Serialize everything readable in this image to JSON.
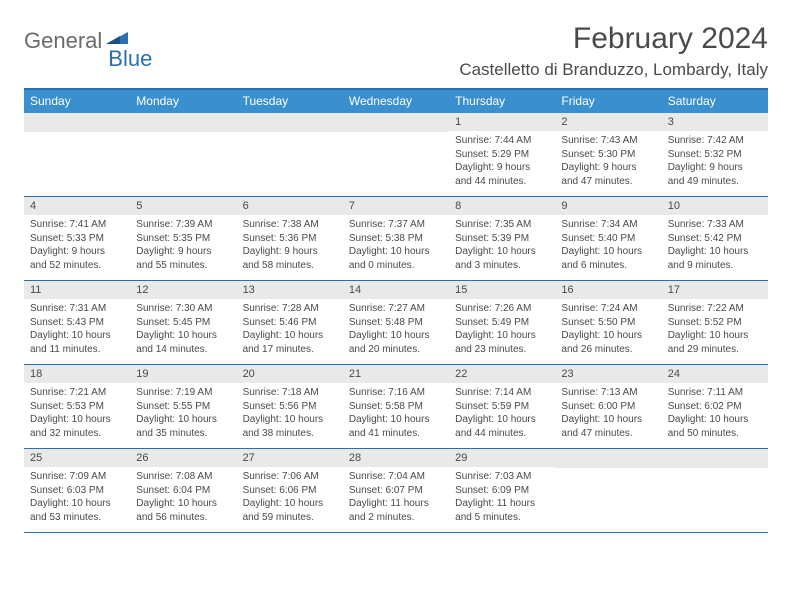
{
  "brand": {
    "part1": "General",
    "part2": "Blue"
  },
  "title": "February 2024",
  "location": "Castelletto di Branduzzo, Lombardy, Italy",
  "colors": {
    "header_bg": "#3a8fcf",
    "border": "#2b6fb3",
    "daynum_bg": "#e9e9e9",
    "text": "#4a4a4a",
    "header_text": "#ffffff",
    "brand_gray": "#6a6a6a",
    "brand_blue": "#2b6fb3"
  },
  "day_names": [
    "Sunday",
    "Monday",
    "Tuesday",
    "Wednesday",
    "Thursday",
    "Friday",
    "Saturday"
  ],
  "weeks": [
    [
      null,
      null,
      null,
      null,
      {
        "n": "1",
        "sunrise": "7:44 AM",
        "sunset": "5:29 PM",
        "daylight": "9 hours and 44 minutes."
      },
      {
        "n": "2",
        "sunrise": "7:43 AM",
        "sunset": "5:30 PM",
        "daylight": "9 hours and 47 minutes."
      },
      {
        "n": "3",
        "sunrise": "7:42 AM",
        "sunset": "5:32 PM",
        "daylight": "9 hours and 49 minutes."
      }
    ],
    [
      {
        "n": "4",
        "sunrise": "7:41 AM",
        "sunset": "5:33 PM",
        "daylight": "9 hours and 52 minutes."
      },
      {
        "n": "5",
        "sunrise": "7:39 AM",
        "sunset": "5:35 PM",
        "daylight": "9 hours and 55 minutes."
      },
      {
        "n": "6",
        "sunrise": "7:38 AM",
        "sunset": "5:36 PM",
        "daylight": "9 hours and 58 minutes."
      },
      {
        "n": "7",
        "sunrise": "7:37 AM",
        "sunset": "5:38 PM",
        "daylight": "10 hours and 0 minutes."
      },
      {
        "n": "8",
        "sunrise": "7:35 AM",
        "sunset": "5:39 PM",
        "daylight": "10 hours and 3 minutes."
      },
      {
        "n": "9",
        "sunrise": "7:34 AM",
        "sunset": "5:40 PM",
        "daylight": "10 hours and 6 minutes."
      },
      {
        "n": "10",
        "sunrise": "7:33 AM",
        "sunset": "5:42 PM",
        "daylight": "10 hours and 9 minutes."
      }
    ],
    [
      {
        "n": "11",
        "sunrise": "7:31 AM",
        "sunset": "5:43 PM",
        "daylight": "10 hours and 11 minutes."
      },
      {
        "n": "12",
        "sunrise": "7:30 AM",
        "sunset": "5:45 PM",
        "daylight": "10 hours and 14 minutes."
      },
      {
        "n": "13",
        "sunrise": "7:28 AM",
        "sunset": "5:46 PM",
        "daylight": "10 hours and 17 minutes."
      },
      {
        "n": "14",
        "sunrise": "7:27 AM",
        "sunset": "5:48 PM",
        "daylight": "10 hours and 20 minutes."
      },
      {
        "n": "15",
        "sunrise": "7:26 AM",
        "sunset": "5:49 PM",
        "daylight": "10 hours and 23 minutes."
      },
      {
        "n": "16",
        "sunrise": "7:24 AM",
        "sunset": "5:50 PM",
        "daylight": "10 hours and 26 minutes."
      },
      {
        "n": "17",
        "sunrise": "7:22 AM",
        "sunset": "5:52 PM",
        "daylight": "10 hours and 29 minutes."
      }
    ],
    [
      {
        "n": "18",
        "sunrise": "7:21 AM",
        "sunset": "5:53 PM",
        "daylight": "10 hours and 32 minutes."
      },
      {
        "n": "19",
        "sunrise": "7:19 AM",
        "sunset": "5:55 PM",
        "daylight": "10 hours and 35 minutes."
      },
      {
        "n": "20",
        "sunrise": "7:18 AM",
        "sunset": "5:56 PM",
        "daylight": "10 hours and 38 minutes."
      },
      {
        "n": "21",
        "sunrise": "7:16 AM",
        "sunset": "5:58 PM",
        "daylight": "10 hours and 41 minutes."
      },
      {
        "n": "22",
        "sunrise": "7:14 AM",
        "sunset": "5:59 PM",
        "daylight": "10 hours and 44 minutes."
      },
      {
        "n": "23",
        "sunrise": "7:13 AM",
        "sunset": "6:00 PM",
        "daylight": "10 hours and 47 minutes."
      },
      {
        "n": "24",
        "sunrise": "7:11 AM",
        "sunset": "6:02 PM",
        "daylight": "10 hours and 50 minutes."
      }
    ],
    [
      {
        "n": "25",
        "sunrise": "7:09 AM",
        "sunset": "6:03 PM",
        "daylight": "10 hours and 53 minutes."
      },
      {
        "n": "26",
        "sunrise": "7:08 AM",
        "sunset": "6:04 PM",
        "daylight": "10 hours and 56 minutes."
      },
      {
        "n": "27",
        "sunrise": "7:06 AM",
        "sunset": "6:06 PM",
        "daylight": "10 hours and 59 minutes."
      },
      {
        "n": "28",
        "sunrise": "7:04 AM",
        "sunset": "6:07 PM",
        "daylight": "11 hours and 2 minutes."
      },
      {
        "n": "29",
        "sunrise": "7:03 AM",
        "sunset": "6:09 PM",
        "daylight": "11 hours and 5 minutes."
      },
      null,
      null
    ]
  ],
  "labels": {
    "sunrise": "Sunrise:",
    "sunset": "Sunset:",
    "daylight": "Daylight:"
  }
}
